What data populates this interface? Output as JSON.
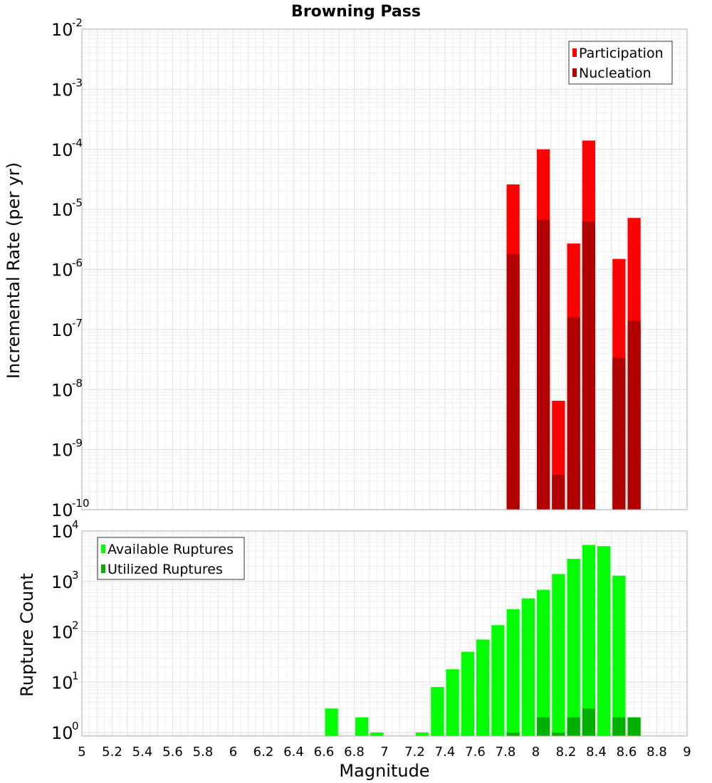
{
  "chart_data": {
    "title": "Browning Pass",
    "x_axis": {
      "label": "Magnitude",
      "range": [
        5,
        9
      ],
      "ticks": [
        "5",
        "5.2",
        "5.4",
        "5.6",
        "5.8",
        "6",
        "6.2",
        "6.4",
        "6.6",
        "6.8",
        "7",
        "7.2",
        "7.4",
        "7.6",
        "7.8",
        "8",
        "8.2",
        "8.4",
        "8.6",
        "8.8",
        "9"
      ]
    },
    "bin_width": 0.1,
    "panels": [
      {
        "type": "bar",
        "scale": "log",
        "ylabel": "Incremental Rate (per yr)",
        "y_exponent_range": [
          -10,
          -2
        ],
        "y_ticks": [
          {
            "base": "10",
            "exp": "-2"
          },
          {
            "base": "10",
            "exp": "-3"
          },
          {
            "base": "10",
            "exp": "-4"
          },
          {
            "base": "10",
            "exp": "-5"
          },
          {
            "base": "10",
            "exp": "-6"
          },
          {
            "base": "10",
            "exp": "-7"
          },
          {
            "base": "10",
            "exp": "-8"
          },
          {
            "base": "10",
            "exp": "-9"
          },
          {
            "base": "10",
            "exp": "-10"
          }
        ],
        "legend": {
          "position": "top-right"
        },
        "series": [
          {
            "name": "Participation",
            "color": "#ff0000",
            "points": [
              {
                "x": 7.85,
                "y": 2.6e-05
              },
              {
                "x": 8.05,
                "y": 0.0001
              },
              {
                "x": 8.15,
                "y": 6.5e-09
              },
              {
                "x": 8.25,
                "y": 2.7e-06
              },
              {
                "x": 8.35,
                "y": 0.00014
              },
              {
                "x": 8.55,
                "y": 1.5e-06
              },
              {
                "x": 8.65,
                "y": 7.2e-06
              }
            ]
          },
          {
            "name": "Nucleation",
            "color": "#b00000",
            "points": [
              {
                "x": 7.85,
                "y": 1.8e-06
              },
              {
                "x": 8.05,
                "y": 6.7e-06
              },
              {
                "x": 8.15,
                "y": 3.8e-10
              },
              {
                "x": 8.25,
                "y": 1.6e-07
              },
              {
                "x": 8.35,
                "y": 6.3e-06
              },
              {
                "x": 8.55,
                "y": 3.4e-08
              },
              {
                "x": 8.65,
                "y": 1.4e-07
              }
            ]
          }
        ]
      },
      {
        "type": "bar",
        "scale": "log",
        "ylabel": "Rupture Count",
        "y_exponent_range": [
          -0.07,
          4
        ],
        "y_ticks": [
          {
            "base": "10",
            "exp": "4"
          },
          {
            "base": "10",
            "exp": "3"
          },
          {
            "base": "10",
            "exp": "2"
          },
          {
            "base": "10",
            "exp": "1"
          },
          {
            "base": "10",
            "exp": "0"
          }
        ],
        "legend": {
          "position": "top-left"
        },
        "series": [
          {
            "name": "Available Ruptures",
            "color": "#00ff00",
            "points": [
              {
                "x": 6.65,
                "y": 3
              },
              {
                "x": 6.85,
                "y": 2
              },
              {
                "x": 6.95,
                "y": 1
              },
              {
                "x": 7.25,
                "y": 1
              },
              {
                "x": 7.35,
                "y": 8
              },
              {
                "x": 7.45,
                "y": 18
              },
              {
                "x": 7.55,
                "y": 40
              },
              {
                "x": 7.65,
                "y": 70
              },
              {
                "x": 7.75,
                "y": 135
              },
              {
                "x": 7.85,
                "y": 280
              },
              {
                "x": 7.95,
                "y": 460
              },
              {
                "x": 8.05,
                "y": 680
              },
              {
                "x": 8.15,
                "y": 1400
              },
              {
                "x": 8.25,
                "y": 2800
              },
              {
                "x": 8.35,
                "y": 5300
              },
              {
                "x": 8.45,
                "y": 5000
              },
              {
                "x": 8.55,
                "y": 1300
              }
            ]
          },
          {
            "name": "Utilized Ruptures",
            "color": "#00b000",
            "points": [
              {
                "x": 7.85,
                "y": 1
              },
              {
                "x": 8.05,
                "y": 2
              },
              {
                "x": 8.15,
                "y": 1
              },
              {
                "x": 8.25,
                "y": 2
              },
              {
                "x": 8.35,
                "y": 3
              },
              {
                "x": 8.55,
                "y": 2
              },
              {
                "x": 8.65,
                "y": 2
              }
            ]
          }
        ]
      }
    ]
  }
}
